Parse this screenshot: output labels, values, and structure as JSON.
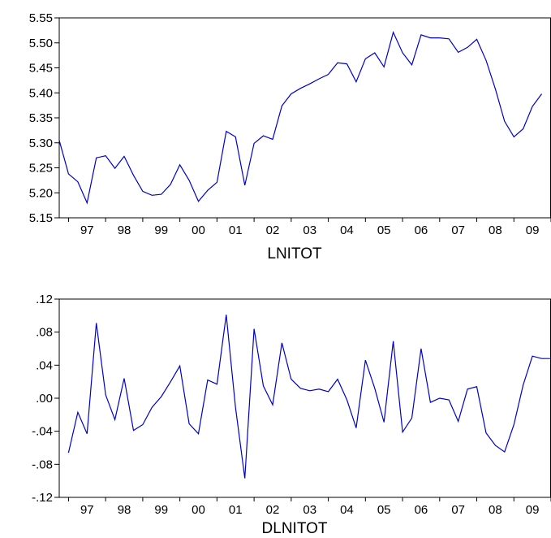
{
  "chart_data": [
    {
      "type": "line",
      "title": "LNITOT",
      "xlabel": "",
      "ylabel": "",
      "x_ticks": [
        "97",
        "98",
        "99",
        "00",
        "01",
        "02",
        "03",
        "04",
        "05",
        "06",
        "07",
        "08",
        "09"
      ],
      "x_range": [
        1996.75,
        2010.0
      ],
      "ylim": [
        5.15,
        5.55
      ],
      "y_ticks": [
        "5.15",
        "5.20",
        "5.25",
        "5.30",
        "5.35",
        "5.40",
        "5.45",
        "5.50",
        "5.55"
      ],
      "y_tick_values": [
        5.15,
        5.2,
        5.25,
        5.3,
        5.35,
        5.4,
        5.45,
        5.5,
        5.55
      ],
      "grid": false,
      "series": [
        {
          "x": [
            1996.75,
            1997.0,
            1997.25,
            1997.5,
            1997.75,
            1998.0,
            1998.25,
            1998.5,
            1998.75,
            1999.0,
            1999.25,
            1999.5,
            1999.75,
            2000.0,
            2000.25,
            2000.5,
            2000.75,
            2001.0,
            2001.25,
            2001.5,
            2001.75,
            2002.0,
            2002.25,
            2002.5,
            2002.75,
            2003.0,
            2003.25,
            2003.5,
            2003.75,
            2004.0,
            2004.25,
            2004.5,
            2004.75,
            2005.0,
            2005.25,
            2005.5,
            2005.75,
            2006.0,
            2006.25,
            2006.5,
            2006.75,
            2007.0,
            2007.25,
            2007.5,
            2007.75,
            2008.0,
            2008.25,
            2008.5,
            2008.75,
            2009.0,
            2009.25,
            2009.5,
            2009.75
          ],
          "values": [
            5.305,
            5.238,
            5.222,
            5.18,
            5.27,
            5.274,
            5.249,
            5.273,
            5.235,
            5.203,
            5.195,
            5.197,
            5.217,
            5.256,
            5.225,
            5.183,
            5.205,
            5.221,
            5.323,
            5.312,
            5.215,
            5.299,
            5.314,
            5.307,
            5.374,
            5.398,
            5.409,
            5.418,
            5.428,
            5.437,
            5.46,
            5.458,
            5.422,
            5.468,
            5.48,
            5.452,
            5.521,
            5.48,
            5.456,
            5.516,
            5.51,
            5.51,
            5.508,
            5.481,
            5.491,
            5.507,
            5.465,
            5.408,
            5.343,
            5.312,
            5.328,
            5.373,
            5.398
          ]
        }
      ]
    },
    {
      "type": "line",
      "title": "DLNITOT",
      "xlabel": "",
      "ylabel": "",
      "x_ticks": [
        "97",
        "98",
        "99",
        "00",
        "01",
        "02",
        "03",
        "04",
        "05",
        "06",
        "07",
        "08",
        "09"
      ],
      "x_range": [
        1996.75,
        2010.0
      ],
      "ylim": [
        -0.12,
        0.12
      ],
      "y_ticks": [
        "-.12",
        "-.08",
        "-.04",
        ".00",
        ".04",
        ".08",
        ".12"
      ],
      "y_tick_values": [
        -0.12,
        -0.08,
        -0.04,
        0.0,
        0.04,
        0.08,
        0.12
      ],
      "grid": false,
      "series": [
        {
          "x": [
            1997.0,
            1997.25,
            1997.5,
            1997.75,
            1998.0,
            1998.25,
            1998.5,
            1998.75,
            1999.0,
            1999.25,
            1999.5,
            1999.75,
            2000.0,
            2000.25,
            2000.5,
            2000.75,
            2001.0,
            2001.25,
            2001.5,
            2001.75,
            2002.0,
            2002.25,
            2002.5,
            2002.75,
            2003.0,
            2003.25,
            2003.5,
            2003.75,
            2004.0,
            2004.25,
            2004.5,
            2004.75,
            2005.0,
            2005.25,
            2005.5,
            2005.75,
            2006.0,
            2006.25,
            2006.5,
            2006.75,
            2007.0,
            2007.25,
            2007.5,
            2007.75,
            2008.0,
            2008.25,
            2008.5,
            2008.75,
            2009.0,
            2009.25,
            2009.5,
            2009.75,
            2010.0
          ],
          "values": [
            -0.066,
            -0.017,
            -0.043,
            0.091,
            0.004,
            -0.026,
            0.024,
            -0.039,
            -0.032,
            -0.011,
            0.002,
            0.02,
            0.039,
            -0.031,
            -0.043,
            0.022,
            0.017,
            0.101,
            -0.011,
            -0.097,
            0.084,
            0.015,
            -0.008,
            0.067,
            0.023,
            0.012,
            0.009,
            0.011,
            0.008,
            0.023,
            -0.002,
            -0.036,
            0.046,
            0.012,
            -0.029,
            0.069,
            -0.041,
            -0.024,
            0.06,
            -0.005,
            0.0,
            -0.002,
            -0.028,
            0.011,
            0.014,
            -0.042,
            -0.057,
            -0.065,
            -0.032,
            0.016,
            0.051,
            0.048,
            0.048
          ]
        }
      ]
    }
  ]
}
